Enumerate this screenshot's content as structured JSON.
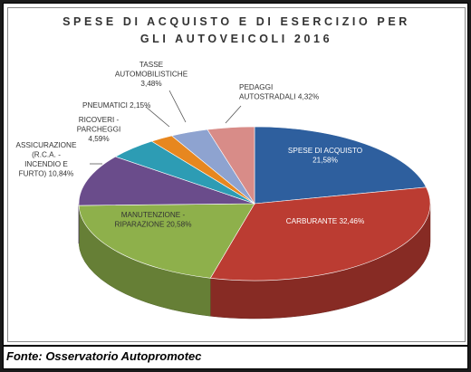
{
  "chart_data": {
    "type": "pie",
    "title": "SPESE DI ACQUISTO E DI ESERCIZIO PER\nGLI AUTOVEICOLI 2016",
    "slices": [
      {
        "label": "SPESE DI ACQUISTO",
        "value": 21.58,
        "value_text": "21,58%",
        "color": "#2e5f9e"
      },
      {
        "label": "CARBURANTE",
        "value": 32.46,
        "value_text": "32,46%",
        "color": "#bb3c32"
      },
      {
        "label": "MANUTENZIONE - RIPARAZIONE",
        "value": 20.58,
        "value_text": "20,58%",
        "color": "#8eb04b"
      },
      {
        "label": "ASSICURAZIONE (R.C.A. - INCENDIO E FURTO)",
        "value": 10.84,
        "value_text": "10,84%",
        "color": "#6a4c8b"
      },
      {
        "label": "RICOVERI - PARCHEGGI",
        "value": 4.59,
        "value_text": "4,59%",
        "color": "#2d9cb4"
      },
      {
        "label": "PNEUMATICI",
        "value": 2.15,
        "value_text": "2,15%",
        "color": "#e7871f"
      },
      {
        "label": "TASSE AUTOMOBILISTICHE",
        "value": 3.48,
        "value_text": "3,48%",
        "color": "#8ea3d0"
      },
      {
        "label": "PEDAGGI AUTOSTRADALI",
        "value": 4.32,
        "value_text": "4,32%",
        "color": "#d88c88"
      }
    ]
  },
  "footer": {
    "source": "Fonte: Osservatorio Autopromotec"
  }
}
